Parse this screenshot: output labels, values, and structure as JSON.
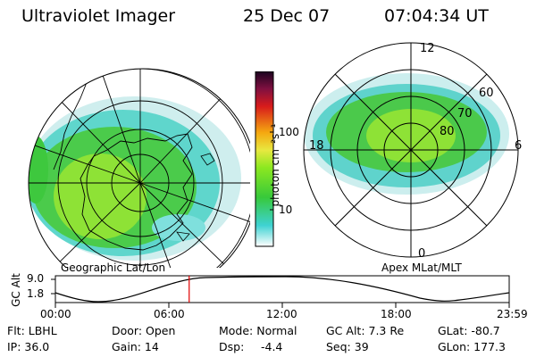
{
  "header": {
    "instrument": "Ultraviolet Imager",
    "date": "25 Dec 07",
    "time": "07:04:34 UT"
  },
  "left_panel": {
    "caption": "Geographic Lat/Lon"
  },
  "right_panel": {
    "caption": "Apex MLat/MLT",
    "mlt_labels": {
      "top": "12",
      "bottom": "0",
      "left": "18",
      "right": "6"
    },
    "lat_labels": [
      "60",
      "70",
      "80"
    ]
  },
  "colorbar": {
    "unit_label": "photon cm⁻²s⁻¹",
    "ticks": [
      "100",
      "10"
    ],
    "colors": [
      "#ffffff",
      "#3ed2d2",
      "#37c93a",
      "#8ce820",
      "#f5a810",
      "#d81b1b",
      "#1a0320"
    ]
  },
  "timeline": {
    "ylabel": "GC Alt",
    "yticks": [
      "9.0",
      "1.8"
    ],
    "xticks": [
      "00:00",
      "06:00",
      "12:00",
      "18:00",
      "23:59"
    ],
    "current_time_fraction": 0.2948,
    "marker_color": "#e00000"
  },
  "info": {
    "filter": "Flt: LBHL",
    "ip": "IP: 36.0",
    "door": "Door: Open",
    "gain": "Gain: 14",
    "mode": "Mode: Normal",
    "dsp_label": "Dsp:",
    "dsp_value": "-4.4",
    "gc_alt": "GC Alt: 7.3 Re",
    "seq": "Seq: 39",
    "glat": "GLat: -80.7",
    "glon": "GLon: 177.3"
  }
}
